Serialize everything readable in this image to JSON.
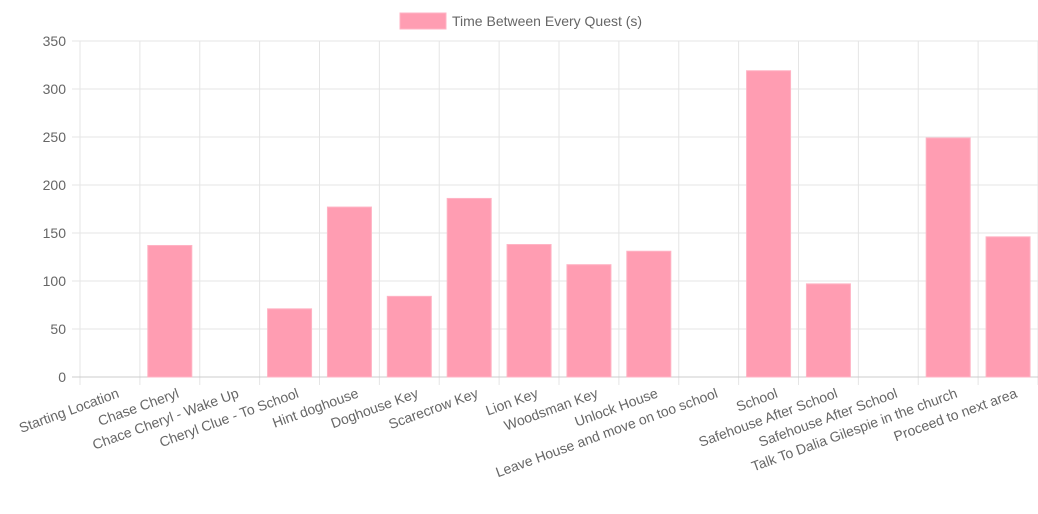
{
  "chart_data": {
    "type": "bar",
    "categories": [
      "Starting Location",
      "Chase Cheryl",
      "Chace Cheryl - Wake Up",
      "Cheryl Clue - To School",
      "Hint doghouse",
      "Doghouse Key",
      "Scarecrow Key",
      "Lion Key",
      "Woodsman Key",
      "Unlock House",
      "Leave House and move on too school",
      "School",
      "Safehouse After School",
      "Safehouse After School",
      "Talk To Dalia Gilespie in the church",
      "Proceed to next area"
    ],
    "series": [
      {
        "name": "Time Between Every Quest (s)",
        "values": [
          0,
          137,
          0,
          71,
          177,
          84,
          186,
          138,
          117,
          131,
          0,
          319,
          97,
          0,
          249,
          146
        ],
        "color": "#ff9db2",
        "border_color": "#ffb3c4"
      }
    ],
    "ylim": [
      0,
      350
    ],
    "yticks": [
      0,
      50,
      100,
      150,
      200,
      250,
      300,
      350
    ],
    "grid": true,
    "legend_position": "top-center"
  }
}
